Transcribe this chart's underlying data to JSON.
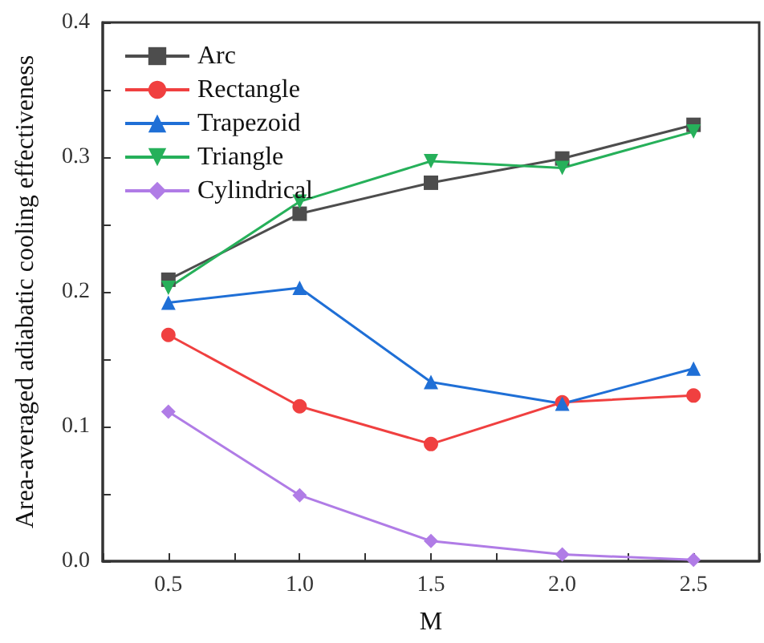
{
  "chart_data": {
    "type": "line",
    "xlabel": "M",
    "ylabel": "Area-averaged adiabatic cooling effectiveness",
    "x": [
      0.5,
      1.0,
      1.5,
      2.0,
      2.5
    ],
    "xlim": [
      0.25,
      2.75
    ],
    "xticks": [
      {
        "value": 0.25,
        "label": null
      },
      0.5,
      {
        "value": 0.75,
        "label": null
      },
      {
        "value": 1.0,
        "label": "1.0"
      },
      {
        "value": 1.25,
        "label": null
      },
      1.5,
      {
        "value": 1.75,
        "label": null
      },
      {
        "value": 2.0,
        "label": "2.0"
      },
      {
        "value": 2.25,
        "label": null
      },
      2.5,
      {
        "value": 2.75,
        "label": null
      }
    ],
    "ylim": [
      0,
      0.4
    ],
    "yticks": [
      {
        "value": 0,
        "label": "0.0"
      },
      {
        "value": 0.05,
        "label": null
      },
      0.1,
      {
        "value": 0.15,
        "label": null
      },
      0.2,
      {
        "value": 0.25,
        "label": null
      },
      0.3,
      {
        "value": 0.35,
        "label": null
      },
      0.4
    ],
    "grid": false,
    "legend": "top left",
    "line_style": "solid",
    "series": [
      {
        "name": "Arc",
        "color": "#4d4d4d",
        "marker": "square",
        "values": [
          0.209,
          0.258,
          0.281,
          0.299,
          0.324
        ]
      },
      {
        "name": "Rectangle",
        "color": "#f04040",
        "marker": "circle",
        "values": [
          0.168,
          0.115,
          0.087,
          0.118,
          0.123
        ]
      },
      {
        "name": "Trapezoid",
        "color": "#1f6fd6",
        "marker": "triangle",
        "values": [
          0.192,
          0.203,
          0.133,
          0.117,
          0.143
        ]
      },
      {
        "name": "Triangle",
        "color": "#26b05a",
        "marker": "triangle-down",
        "values": [
          0.203,
          0.267,
          0.297,
          0.292,
          0.319
        ]
      },
      {
        "name": "Cylindrical",
        "color": "#b07ce6",
        "marker": "diamond",
        "values": [
          0.111,
          0.049,
          0.015,
          0.005,
          0.001
        ]
      }
    ]
  }
}
